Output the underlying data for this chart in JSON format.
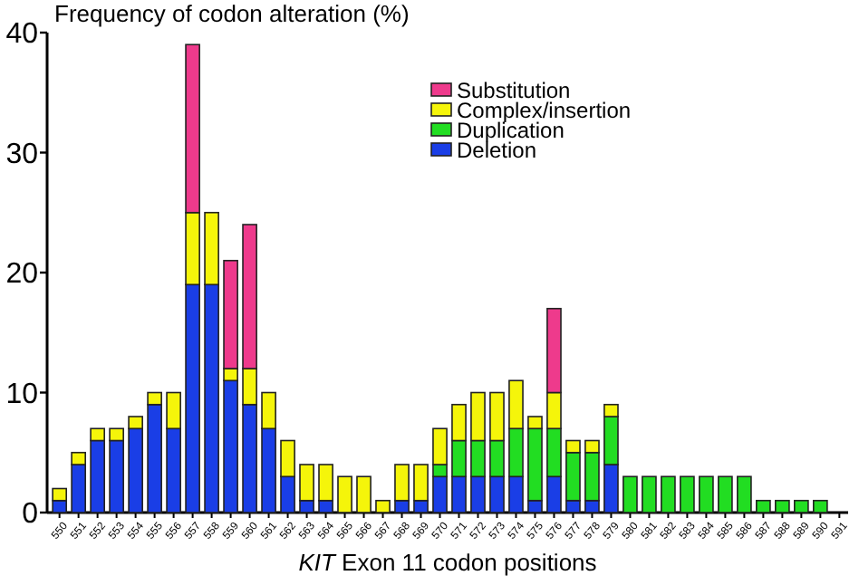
{
  "chart_data": {
    "type": "bar",
    "stacked": true,
    "ylabel": "Frequency of codon alteration (%)",
    "xlabel": "KIT Exon 11 codon  positions",
    "categories": [
      "550",
      "551",
      "552",
      "553",
      "554",
      "555",
      "556",
      "557",
      "558",
      "559",
      "560",
      "561",
      "562",
      "563",
      "564",
      "565",
      "566",
      "567",
      "568",
      "569",
      "570",
      "571",
      "572",
      "573",
      "574",
      "575",
      "576",
      "577",
      "578",
      "579",
      "580",
      "581",
      "582",
      "583",
      "584",
      "585",
      "586",
      "587",
      "588",
      "589",
      "590",
      "591"
    ],
    "series": [
      {
        "name": "Deletion",
        "color": "#1a3ee6",
        "values": [
          1,
          4,
          6,
          6,
          7,
          9,
          7,
          19,
          19,
          11,
          9,
          7,
          3,
          1,
          1,
          0,
          0,
          0,
          1,
          1,
          3,
          3,
          3,
          3,
          3,
          1,
          3,
          1,
          1,
          4,
          0,
          0,
          0,
          0,
          0,
          0,
          0,
          0,
          0,
          0,
          0,
          0
        ]
      },
      {
        "name": "Duplication",
        "color": "#22dd22",
        "values": [
          0,
          0,
          0,
          0,
          0,
          0,
          0,
          0,
          0,
          0,
          0,
          0,
          0,
          0,
          0,
          0,
          0,
          0,
          0,
          0,
          1,
          3,
          3,
          3,
          4,
          6,
          4,
          4,
          4,
          4,
          3,
          3,
          3,
          3,
          3,
          3,
          3,
          1,
          1,
          1,
          1,
          0
        ]
      },
      {
        "name": "Complex/insertion",
        "color": "#f5f50a",
        "values": [
          1,
          1,
          1,
          1,
          1,
          1,
          3,
          6,
          6,
          1,
          3,
          3,
          3,
          3,
          3,
          3,
          3,
          1,
          3,
          3,
          3,
          3,
          4,
          4,
          4,
          1,
          3,
          1,
          1,
          1,
          0,
          0,
          0,
          0,
          0,
          0,
          0,
          0,
          0,
          0,
          0,
          0
        ]
      },
      {
        "name": "Substitution",
        "color": "#ee3a8c",
        "values": [
          0,
          0,
          0,
          0,
          0,
          0,
          0,
          14,
          0,
          9,
          12,
          0,
          0,
          0,
          0,
          0,
          0,
          0,
          0,
          0,
          0,
          0,
          0,
          0,
          0,
          0,
          7,
          0,
          0,
          0,
          0,
          0,
          0,
          0,
          0,
          0,
          0,
          0,
          0,
          0,
          0,
          0
        ]
      }
    ],
    "ylim": [
      0,
      40
    ],
    "yticks": [
      0,
      10,
      20,
      30,
      40
    ],
    "legend": "top right"
  }
}
